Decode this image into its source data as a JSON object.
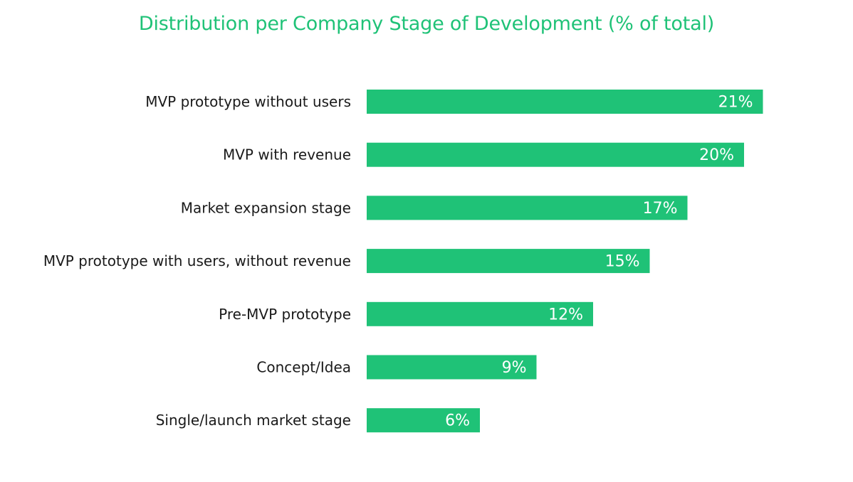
{
  "chart_data": {
    "type": "bar",
    "orientation": "horizontal",
    "title": "Distribution per Company Stage of Development (% of total)",
    "categories": [
      "MVP prototype without users",
      "MVP with revenue",
      "Market expansion stage",
      "MVP prototype with users, without revenue",
      "Pre-MVP prototype",
      "Concept/Idea",
      "Single/launch market stage"
    ],
    "values": [
      21,
      20,
      17,
      15,
      12,
      9,
      6
    ],
    "value_labels": [
      "21%",
      "20%",
      "17%",
      "15%",
      "12%",
      "9%",
      "6%"
    ],
    "unit": "%",
    "grid": false,
    "legend": "none",
    "bar_color": "#1fc277",
    "title_color": "#1fc277",
    "value_label_color": "#ffffff"
  }
}
